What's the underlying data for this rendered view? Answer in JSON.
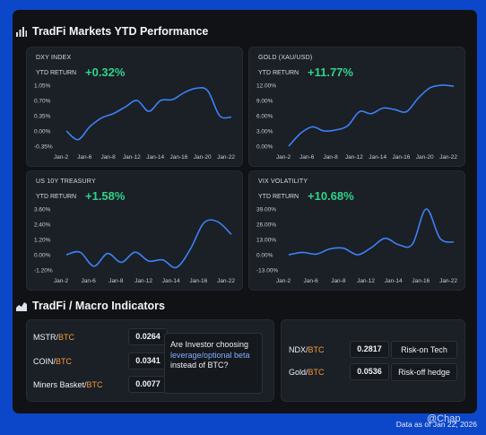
{
  "ytd_section": {
    "title": "TradFi Markets YTD Performance",
    "title_icon": "bar-chart-icon",
    "return_label": "YTD RETURN"
  },
  "macro_section": {
    "title": "TradFi / Macro Indicators",
    "title_icon": "area-chart-icon"
  },
  "chart_data": [
    {
      "type": "line",
      "name": "DXY INDEX",
      "ytd_return": "+0.32%",
      "yticks": [
        "1.05%",
        "0.70%",
        "0.35%",
        "0.00%",
        "-0.35%"
      ],
      "ylim": [
        -0.35,
        1.05
      ],
      "xticks": [
        "Jan-2",
        "Jan-6",
        "Jan-8",
        "Jan-12",
        "Jan-14",
        "Jan-16",
        "Jan-20",
        "Jan-22"
      ],
      "line_color": "#3b82f6",
      "x": [
        0,
        0.5,
        1,
        1.5,
        2,
        2.5,
        3,
        3.5,
        4,
        4.5,
        5,
        5.5,
        6,
        6.5,
        7
      ],
      "y": [
        0.0,
        -0.2,
        0.1,
        0.3,
        0.4,
        0.55,
        0.7,
        0.45,
        0.7,
        0.72,
        0.88,
        0.98,
        0.92,
        0.35,
        0.32
      ]
    },
    {
      "type": "line",
      "name": "GOLD  (XAU/USD)",
      "ytd_return": "+11.77%",
      "yticks": [
        "12.00%",
        "9.00%",
        "6.00%",
        "3.00%",
        "0.00%"
      ],
      "ylim": [
        0,
        12
      ],
      "xticks": [
        "Jan-2",
        "Jan-6",
        "Jan-8",
        "Jan-12",
        "Jan-14",
        "Jan-16",
        "Jan-20",
        "Jan-22"
      ],
      "line_color": "#3b82f6",
      "x": [
        0,
        0.5,
        1,
        1.5,
        2,
        2.5,
        3,
        3.5,
        4,
        4.5,
        5,
        5.5,
        6,
        6.5,
        7
      ],
      "y": [
        0.0,
        2.5,
        3.8,
        3.0,
        3.2,
        4.0,
        6.8,
        6.4,
        7.5,
        7.2,
        6.8,
        9.5,
        11.5,
        12.0,
        11.8
      ]
    },
    {
      "type": "line",
      "name": "US 10Y TREASURY",
      "ytd_return": "+1.58%",
      "yticks": [
        "3.60%",
        "2.40%",
        "1.20%",
        "0.00%",
        "-1.20%"
      ],
      "ylim": [
        -1.2,
        3.6
      ],
      "xticks": [
        "Jan-2",
        "Jan-6",
        "Jan-8",
        "Jan-12",
        "Jan-14",
        "Jan-16",
        "Jan-22"
      ],
      "line_color": "#3b82f6",
      "x": [
        0,
        0.5,
        1,
        1.5,
        2,
        2.5,
        3,
        3.5,
        4,
        4.5,
        5,
        5.5,
        6
      ],
      "y": [
        0.0,
        0.2,
        -0.9,
        0.1,
        -0.6,
        0.2,
        -0.5,
        -0.4,
        -1.0,
        0.4,
        2.5,
        2.6,
        1.6
      ]
    },
    {
      "type": "line",
      "name": "VIX VOLATILITY",
      "ytd_return": "+10.68%",
      "yticks": [
        "39.00%",
        "26.00%",
        "13.00%",
        "0.00%",
        "-13.00%"
      ],
      "ylim": [
        -13,
        39
      ],
      "xticks": [
        "Jan-2",
        "Jan-6",
        "Jan-8",
        "Jan-12",
        "Jan-14",
        "Jan-16",
        "Jan-22"
      ],
      "line_color": "#3b82f6",
      "x": [
        0,
        0.5,
        1,
        1.5,
        2,
        2.5,
        3,
        3.5,
        4,
        4.5,
        5,
        5.5,
        6
      ],
      "y": [
        0.0,
        2.0,
        0.5,
        5.0,
        5.5,
        0.0,
        6.0,
        14.0,
        8.5,
        9.0,
        39.0,
        14.0,
        10.7
      ]
    }
  ],
  "indicators_left": [
    {
      "prefix": "MSTR/",
      "suffix": "BTC",
      "value": "0.0264"
    },
    {
      "prefix": "COIN/",
      "suffix": "BTC",
      "value": "0.0341"
    },
    {
      "prefix": "Miners Basket/",
      "suffix": "BTC",
      "value": "0.0077"
    }
  ],
  "question": {
    "line1": "Are Investor choosing",
    "highlight": "leverage/optional beta",
    "line2": " instead of BTC?"
  },
  "indicators_right": [
    {
      "prefix": "NDX/",
      "suffix": "BTC",
      "value": "0.2817",
      "tag": "Risk-on Tech"
    },
    {
      "prefix": "Gold/",
      "suffix": "BTC",
      "value": "0.0536",
      "tag": "Risk-off hedge"
    }
  ],
  "footer": {
    "data_as_of": "Data as of Jan 22, 2026",
    "watermark": "@Chap"
  }
}
